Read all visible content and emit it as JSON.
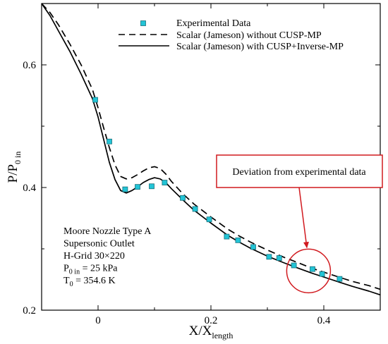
{
  "chart_data": {
    "type": "scatter",
    "xlabel": {
      "main": "X/X",
      "sub": "length"
    },
    "ylabel": {
      "main": "P/P",
      "sub": "0 in"
    },
    "xlim": [
      -0.1,
      0.5
    ],
    "ylim": [
      0.2,
      0.7
    ],
    "x_ticks": [
      0,
      0.2,
      0.4
    ],
    "x_tick_labels": [
      "0",
      "0.2",
      "0.4"
    ],
    "y_ticks": [
      0.2,
      0.4,
      0.6
    ],
    "y_tick_labels": [
      "0.2",
      "0.4",
      "0.6"
    ],
    "grid": false,
    "legend_position": "top-right",
    "series": [
      {
        "name": "Experimental Data",
        "kind": "markers",
        "color": "#22c4d6",
        "x": [
          -0.005,
          0.02,
          0.048,
          0.07,
          0.095,
          0.118,
          0.15,
          0.172,
          0.197,
          0.228,
          0.248,
          0.275,
          0.303,
          0.321,
          0.347,
          0.38,
          0.397,
          0.428
        ],
        "y": [
          0.543,
          0.475,
          0.397,
          0.401,
          0.402,
          0.408,
          0.383,
          0.365,
          0.348,
          0.32,
          0.314,
          0.303,
          0.287,
          0.285,
          0.273,
          0.267,
          0.259,
          0.251
        ]
      },
      {
        "name": "Scalar (Jameson) without CUSP-MP",
        "kind": "dashed",
        "color": "#000000",
        "x": [
          -0.1,
          -0.085,
          -0.07,
          -0.05,
          -0.03,
          -0.01,
          0.0,
          0.01,
          0.02,
          0.03,
          0.04,
          0.05,
          0.06,
          0.07,
          0.08,
          0.09,
          0.1,
          0.11,
          0.12,
          0.13,
          0.15,
          0.17,
          0.2,
          0.23,
          0.25,
          0.27,
          0.3,
          0.33,
          0.35,
          0.38,
          0.4,
          0.43,
          0.45,
          0.48,
          0.5
        ],
        "y": [
          0.7,
          0.685,
          0.665,
          0.634,
          0.6,
          0.56,
          0.53,
          0.497,
          0.465,
          0.437,
          0.418,
          0.414,
          0.416,
          0.421,
          0.427,
          0.432,
          0.434,
          0.431,
          0.422,
          0.41,
          0.39,
          0.373,
          0.352,
          0.332,
          0.321,
          0.311,
          0.298,
          0.286,
          0.279,
          0.268,
          0.262,
          0.253,
          0.247,
          0.24,
          0.234
        ]
      },
      {
        "name": "Scalar (Jameson) with CUSP+Inverse-MP",
        "kind": "solid",
        "color": "#000000",
        "x": [
          -0.1,
          -0.085,
          -0.07,
          -0.05,
          -0.03,
          -0.01,
          0.0,
          0.01,
          0.02,
          0.03,
          0.04,
          0.05,
          0.06,
          0.07,
          0.08,
          0.09,
          0.1,
          0.11,
          0.12,
          0.13,
          0.15,
          0.17,
          0.2,
          0.23,
          0.25,
          0.27,
          0.3,
          0.33,
          0.35,
          0.38,
          0.4,
          0.43,
          0.45,
          0.48,
          0.5
        ],
        "y": [
          0.7,
          0.68,
          0.655,
          0.622,
          0.585,
          0.545,
          0.515,
          0.478,
          0.441,
          0.413,
          0.395,
          0.391,
          0.395,
          0.401,
          0.408,
          0.413,
          0.416,
          0.414,
          0.408,
          0.398,
          0.38,
          0.363,
          0.342,
          0.322,
          0.311,
          0.301,
          0.288,
          0.277,
          0.27,
          0.26,
          0.254,
          0.245,
          0.239,
          0.231,
          0.225
        ]
      }
    ],
    "info_box": [
      {
        "main": "Moore Nozzle Type A",
        "sub": "",
        "rest": ""
      },
      {
        "main": "Supersonic Outlet",
        "sub": "",
        "rest": ""
      },
      {
        "main": "H-Grid 30×220",
        "sub": "",
        "rest": ""
      },
      {
        "main": "P",
        "sub": "0 in",
        "rest": " = 25 kPa"
      },
      {
        "main": "T",
        "sub": "0",
        "rest": " = 354.6 K"
      }
    ],
    "annotation": {
      "text": "Deviation from experimental data",
      "color": "#d11a1f",
      "circle_center": [
        0.373,
        0.264
      ],
      "arrow_tip": [
        0.37,
        0.302
      ]
    }
  }
}
